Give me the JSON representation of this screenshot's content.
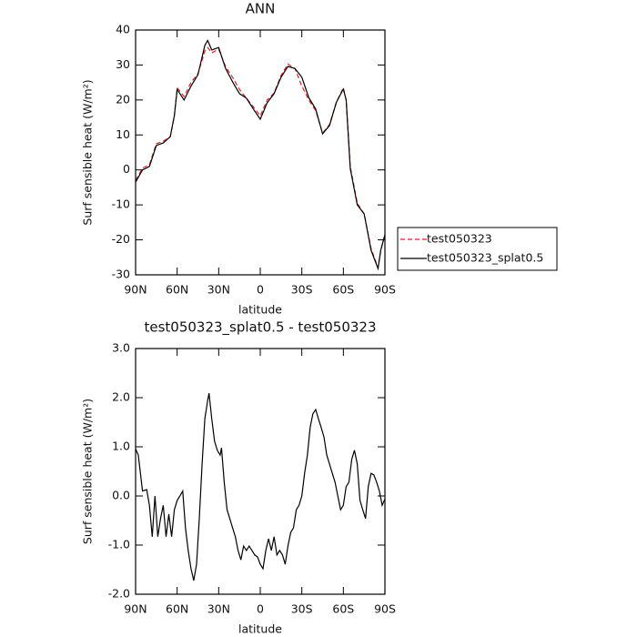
{
  "chart_data": [
    {
      "type": "line",
      "title": "ANN",
      "x_label": "latitude",
      "y_label": "Surf sensible heat (W/m²)",
      "xlim": [
        90,
        -90
      ],
      "ylim": [
        -30,
        40
      ],
      "xticks": [
        {
          "value": 90,
          "label": "90N"
        },
        {
          "value": 60,
          "label": "60N"
        },
        {
          "value": 30,
          "label": "30N"
        },
        0,
        {
          "value": -30,
          "label": "30S"
        },
        {
          "value": -60,
          "label": "60S"
        },
        {
          "value": -90,
          "label": "90S"
        }
      ],
      "yticks": [
        -30,
        -20,
        -10,
        0,
        10,
        20,
        30,
        40
      ],
      "legend": "right",
      "x": [
        90,
        85,
        80,
        75,
        70,
        65,
        62,
        60,
        55,
        50,
        45,
        40,
        38,
        35,
        30,
        25,
        20,
        15,
        10,
        5,
        0,
        -5,
        -10,
        -15,
        -20,
        -25,
        -30,
        -35,
        -40,
        -45,
        -50,
        -55,
        -60,
        -62,
        -65,
        -70,
        -75,
        -80,
        -85,
        -87,
        -90
      ],
      "series": [
        {
          "name": "test050323",
          "color": "#e02020",
          "line_style": "dashed",
          "values": [
            -3,
            0.5,
            1.5,
            7.5,
            8.2,
            9.5,
            15.5,
            23.5,
            21,
            25,
            27.5,
            34,
            35,
            33.5,
            34.5,
            29.5,
            26.5,
            23,
            20.5,
            18,
            15.5,
            20,
            22,
            27,
            30.3,
            29,
            24,
            20,
            17,
            10.5,
            13,
            19.4,
            23.5,
            20,
            1,
            -9.5,
            -12.6,
            -22.5,
            -28,
            -23,
            -18.5
          ]
        },
        {
          "name": "test050323_splat0.5",
          "color": "#000000",
          "line_style": "solid",
          "values": [
            -3.5,
            0,
            1,
            7,
            7.7,
            9.5,
            15.5,
            23,
            20,
            24,
            27.2,
            35.6,
            37,
            34.3,
            35,
            29,
            25.2,
            21.8,
            20.5,
            17.4,
            14.5,
            19.2,
            21.8,
            26.5,
            29.6,
            29,
            26.5,
            20.7,
            17.4,
            10.3,
            12.7,
            19.4,
            23.1,
            20,
            0.4,
            -10,
            -12.6,
            -23,
            -28.2,
            -23,
            -18.5
          ]
        }
      ]
    },
    {
      "type": "line",
      "title": "test050323_splat0.5 - test050323",
      "x_label": "latitude",
      "y_label": "Surf sensible heat (W/m²)",
      "xlim": [
        90,
        -90
      ],
      "ylim": [
        -2,
        3
      ],
      "xticks": [
        {
          "value": 90,
          "label": "90N"
        },
        {
          "value": 60,
          "label": "60N"
        },
        {
          "value": 30,
          "label": "30N"
        },
        0,
        {
          "value": -30,
          "label": "30S"
        },
        {
          "value": -60,
          "label": "60S"
        },
        {
          "value": -90,
          "label": "90S"
        }
      ],
      "yticks": [
        {
          "value": -2,
          "label": "-2.0"
        },
        {
          "value": -1,
          "label": "-1.0"
        },
        {
          "value": 0,
          "label": "0.0"
        },
        {
          "value": 1,
          "label": "1.0"
        },
        {
          "value": 2,
          "label": "2.0"
        },
        {
          "value": 3,
          "label": "3.0"
        }
      ],
      "x": [
        90,
        88,
        85,
        82,
        80,
        78,
        76,
        74,
        72,
        70,
        68,
        66,
        64,
        62,
        60,
        58,
        56,
        54,
        52,
        50,
        48,
        46,
        44,
        42,
        40,
        38,
        37,
        35,
        33,
        31,
        29,
        28,
        26,
        24,
        22,
        20,
        18,
        16,
        14,
        12,
        10,
        8,
        6,
        4,
        2,
        0,
        -2,
        -4,
        -6,
        -8,
        -10,
        -12,
        -14,
        -16,
        -18,
        -20,
        -22,
        -24,
        -26,
        -28,
        -30,
        -32,
        -34,
        -36,
        -38,
        -40,
        -42,
        -44,
        -46,
        -48,
        -50,
        -52,
        -54,
        -56,
        -58,
        -60,
        -62,
        -64,
        -66,
        -68,
        -70,
        -72,
        -74,
        -76,
        -78,
        -80,
        -82,
        -84,
        -86,
        -88,
        -90
      ],
      "series": [
        {
          "color": "#000000",
          "line_style": "solid",
          "values": [
            0.96,
            0.83,
            0.1,
            0.13,
            -0.19,
            -0.83,
            0.0,
            -0.83,
            -0.46,
            -0.19,
            -0.83,
            -0.37,
            -0.83,
            -0.28,
            -0.09,
            0.0,
            0.1,
            -0.65,
            -1.11,
            -1.48,
            -1.72,
            -1.39,
            -0.46,
            0.65,
            1.57,
            1.94,
            2.09,
            1.57,
            1.11,
            0.93,
            0.83,
            0.98,
            0.28,
            -0.28,
            -0.46,
            -0.65,
            -0.83,
            -1.11,
            -1.3,
            -1.02,
            -1.11,
            -1.02,
            -1.11,
            -1.2,
            -1.24,
            -1.39,
            -1.48,
            -1.11,
            -0.87,
            -1.11,
            -0.83,
            -1.2,
            -1.11,
            -1.2,
            -1.39,
            -1.02,
            -0.74,
            -0.65,
            -0.28,
            -0.19,
            0.0,
            0.46,
            0.83,
            1.39,
            1.67,
            1.76,
            1.57,
            1.39,
            1.2,
            0.83,
            0.65,
            0.46,
            0.28,
            0.0,
            -0.28,
            -0.19,
            0.19,
            0.28,
            0.74,
            0.93,
            0.65,
            -0.09,
            -0.28,
            -0.46,
            0.19,
            0.46,
            0.43,
            0.28,
            0.1,
            -0.19,
            -0.06
          ]
        }
      ]
    }
  ]
}
